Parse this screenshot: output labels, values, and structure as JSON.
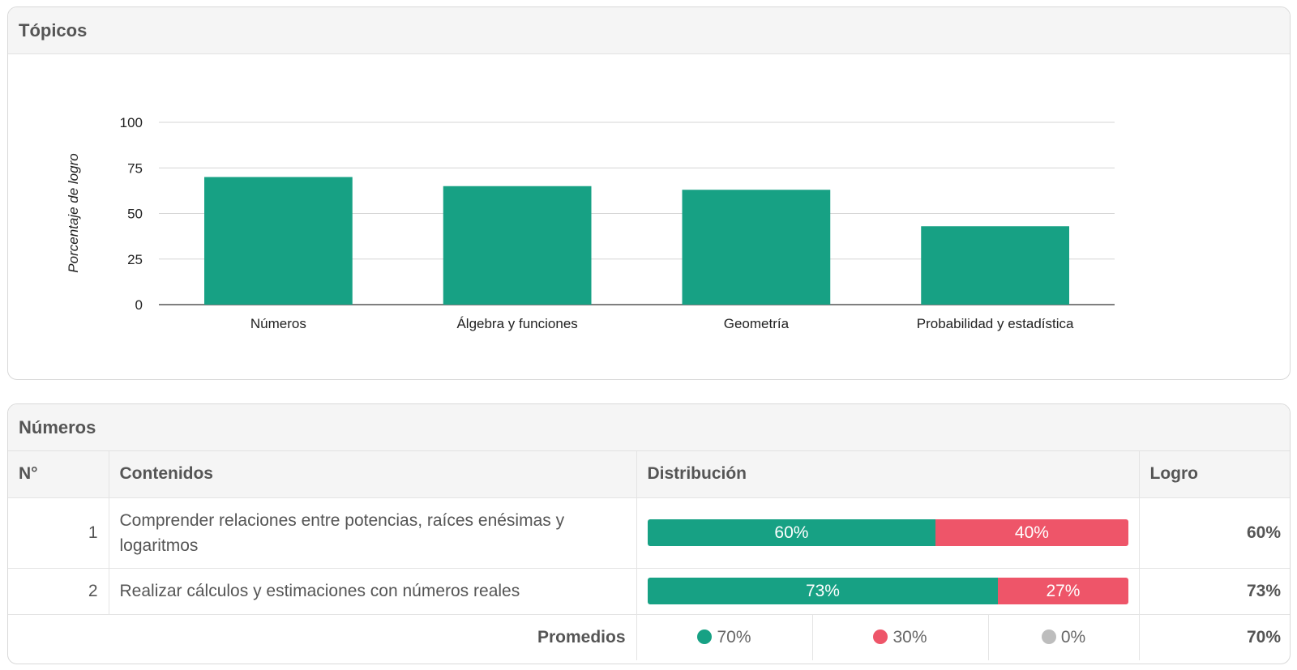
{
  "topics_card": {
    "title": "Tópicos"
  },
  "chart_data": {
    "type": "bar",
    "title": "",
    "xlabel": "",
    "ylabel": "Porcentaje de logro",
    "ylim": [
      0,
      100
    ],
    "yticks": [
      0,
      25,
      50,
      75,
      100
    ],
    "grid": true,
    "categories": [
      "Números",
      "Álgebra y funciones",
      "Geometría",
      "Probabilidad y estadística"
    ],
    "values": [
      70,
      65,
      63,
      43
    ],
    "bar_color": "#17a184"
  },
  "numbers_card": {
    "title": "Números",
    "headers": {
      "num": "N°",
      "contents": "Contenidos",
      "distribution": "Distribución",
      "achievement": "Logro"
    },
    "rows": [
      {
        "num": "1",
        "content": "Comprender relaciones entre potencias, raíces enésimas y logaritmos",
        "correct_pct": 60,
        "incorrect_pct": 40,
        "correct_label": "60%",
        "incorrect_label": "40%",
        "achievement": "60%"
      },
      {
        "num": "2",
        "content": "Realizar cálculos y estimaciones con números reales",
        "correct_pct": 73,
        "incorrect_pct": 27,
        "correct_label": "73%",
        "incorrect_label": "27%",
        "achievement": "73%"
      }
    ],
    "averages": {
      "label": "Promedios",
      "correct": "70%",
      "incorrect": "30%",
      "omitted": "0%",
      "achievement": "70%"
    },
    "colors": {
      "correct": "#17a184",
      "incorrect": "#ee5569",
      "omitted": "#bdbdbd"
    }
  }
}
